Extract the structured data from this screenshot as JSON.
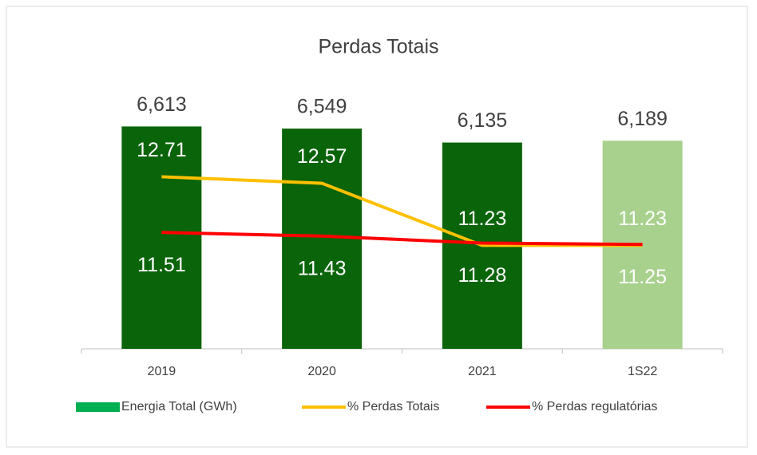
{
  "chart_data": {
    "type": "bar",
    "title": "Perdas Totais",
    "categories": [
      "2019",
      "2020",
      "2021",
      "1S22"
    ],
    "series": [
      {
        "name": "Energia Total (GWh)",
        "type": "bar",
        "color": "#00b050",
        "colors": [
          "#0a640a",
          "#0a640a",
          "#0a640a",
          "#a9d18e"
        ],
        "values": [
          6613,
          6549,
          6135,
          6189
        ],
        "value_labels": [
          "6,613",
          "6,549",
          "6,135",
          "6,189"
        ]
      },
      {
        "name": "% Perdas Totais",
        "type": "line",
        "axis": "y2",
        "color": "#ffc000",
        "values": [
          12.71,
          12.57,
          11.23,
          11.23
        ]
      },
      {
        "name": "% Perdas regulatórias",
        "type": "line",
        "axis": "y2",
        "color": "#ff0000",
        "values": [
          11.51,
          11.43,
          11.28,
          11.25
        ]
      }
    ],
    "ylim": [
      0,
      8000
    ],
    "y2lim": [
      9,
      14.8
    ],
    "legend": "bottom"
  }
}
